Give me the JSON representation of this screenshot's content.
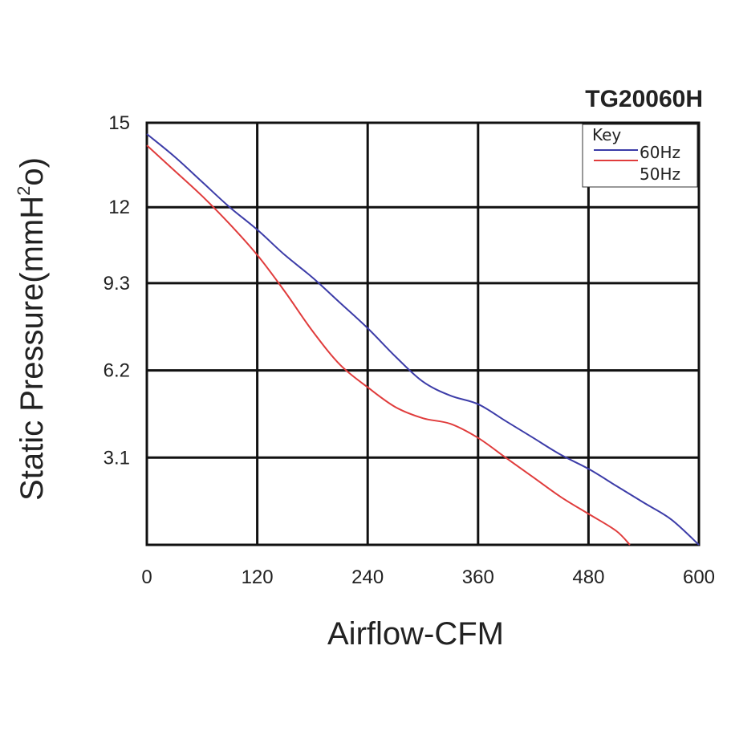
{
  "chart_data": {
    "type": "line",
    "title": "TG20060H",
    "xlabel": "Airflow-CFM",
    "ylabel_main": "Static Pressure(mmH",
    "ylabel_sup": "2",
    "ylabel_end": "o)",
    "xlim": [
      0,
      600
    ],
    "ylim": [
      0,
      15
    ],
    "x_ticks": [
      0,
      120,
      240,
      360,
      480,
      600
    ],
    "y_ticks": [
      3.1,
      6.2,
      9.3,
      12,
      15
    ],
    "grid": true,
    "legend": {
      "title": "Key",
      "placement": "top-right"
    },
    "colors": {
      "60Hz": "#3c3ca8",
      "50Hz": "#e03c3c"
    },
    "series": [
      {
        "name": "60Hz",
        "points": [
          [
            0,
            14.6
          ],
          [
            30,
            13.8
          ],
          [
            60,
            12.9
          ],
          [
            90,
            12.0
          ],
          [
            120,
            11.2
          ],
          [
            150,
            10.3
          ],
          [
            180,
            9.5
          ],
          [
            210,
            8.6
          ],
          [
            240,
            7.7
          ],
          [
            270,
            6.7
          ],
          [
            300,
            5.8
          ],
          [
            330,
            5.3
          ],
          [
            360,
            5.0
          ],
          [
            390,
            4.4
          ],
          [
            420,
            3.8
          ],
          [
            450,
            3.2
          ],
          [
            480,
            2.7
          ],
          [
            510,
            2.1
          ],
          [
            540,
            1.5
          ],
          [
            570,
            0.9
          ],
          [
            600,
            0.0
          ]
        ]
      },
      {
        "name": "50Hz",
        "points": [
          [
            0,
            14.2
          ],
          [
            30,
            13.3
          ],
          [
            60,
            12.4
          ],
          [
            90,
            11.4
          ],
          [
            120,
            10.3
          ],
          [
            150,
            9.0
          ],
          [
            180,
            7.6
          ],
          [
            210,
            6.4
          ],
          [
            240,
            5.6
          ],
          [
            270,
            4.9
          ],
          [
            300,
            4.5
          ],
          [
            330,
            4.3
          ],
          [
            360,
            3.8
          ],
          [
            390,
            3.1
          ],
          [
            420,
            2.4
          ],
          [
            450,
            1.7
          ],
          [
            480,
            1.1
          ],
          [
            510,
            0.5
          ],
          [
            525,
            0.0
          ]
        ]
      }
    ]
  }
}
